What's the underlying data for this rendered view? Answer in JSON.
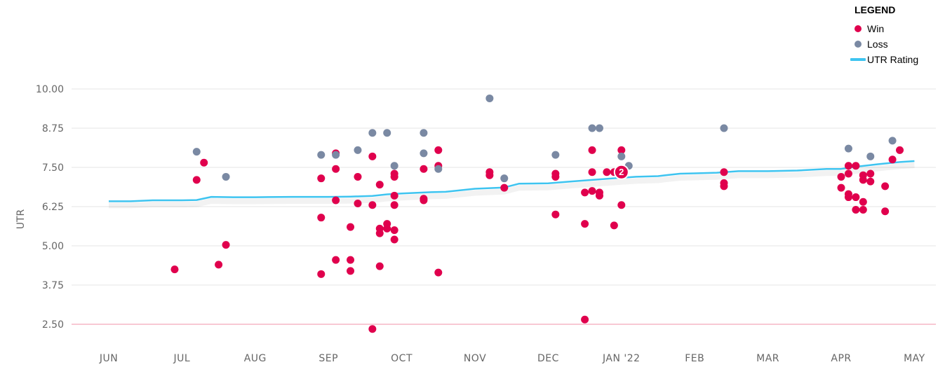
{
  "legend": {
    "title": "LEGEND",
    "items": [
      {
        "label": "Win",
        "kind": "dot",
        "color": "#e0004d"
      },
      {
        "label": "Loss",
        "kind": "dot",
        "color": "#7a89a3"
      },
      {
        "label": "UTR Rating",
        "kind": "line",
        "color": "#3ec4f0"
      }
    ]
  },
  "chart_data": {
    "type": "scatter",
    "ylabel": "UTR",
    "xlabel": "",
    "ylim": [
      2.5,
      10.0
    ],
    "y_ticks": [
      "10.00",
      "8.75",
      "7.50",
      "6.25",
      "5.00",
      "3.75",
      "2.50"
    ],
    "x_ticks": [
      "JUN",
      "JUL",
      "AUG",
      "SEP",
      "OCT",
      "NOV",
      "DEC",
      "JAN '22",
      "FEB",
      "MAR",
      "APR",
      "MAY"
    ],
    "grid": true,
    "legend_position": "top-right",
    "colors": {
      "win": "#e0004d",
      "loss": "#7a89a3",
      "rating": "#3ec4f0",
      "baseline": "#f4a6bb"
    },
    "annotations": [
      {
        "text": "2",
        "month": 7.0,
        "y": 7.35,
        "result": "Win"
      }
    ],
    "series": [
      {
        "name": "UTR Rating",
        "kind": "line",
        "points": [
          [
            0.0,
            6.42
          ],
          [
            0.3,
            6.42
          ],
          [
            0.6,
            6.45
          ],
          [
            1.0,
            6.45
          ],
          [
            1.2,
            6.46
          ],
          [
            1.4,
            6.56
          ],
          [
            1.7,
            6.55
          ],
          [
            2.0,
            6.55
          ],
          [
            2.5,
            6.56
          ],
          [
            3.0,
            6.56
          ],
          [
            3.3,
            6.57
          ],
          [
            3.6,
            6.59
          ],
          [
            3.8,
            6.64
          ],
          [
            4.0,
            6.67
          ],
          [
            4.4,
            6.71
          ],
          [
            4.6,
            6.72
          ],
          [
            5.0,
            6.82
          ],
          [
            5.4,
            6.86
          ],
          [
            5.6,
            6.98
          ],
          [
            6.0,
            6.99
          ],
          [
            6.3,
            7.05
          ],
          [
            6.6,
            7.1
          ],
          [
            7.0,
            7.17
          ],
          [
            7.2,
            7.2
          ],
          [
            7.5,
            7.22
          ],
          [
            7.6,
            7.25
          ],
          [
            7.8,
            7.3
          ],
          [
            8.0,
            7.31
          ],
          [
            8.3,
            7.33
          ],
          [
            8.6,
            7.38
          ],
          [
            9.0,
            7.38
          ],
          [
            9.4,
            7.4
          ],
          [
            9.8,
            7.45
          ],
          [
            10.0,
            7.45
          ],
          [
            10.2,
            7.52
          ],
          [
            10.5,
            7.6
          ],
          [
            10.8,
            7.67
          ],
          [
            11.0,
            7.7
          ]
        ]
      },
      {
        "name": "Win",
        "kind": "points",
        "points": [
          [
            0.9,
            4.25
          ],
          [
            1.2,
            7.1
          ],
          [
            1.3,
            7.65
          ],
          [
            1.5,
            4.4
          ],
          [
            1.6,
            5.03
          ],
          [
            2.9,
            4.1
          ],
          [
            2.9,
            5.9
          ],
          [
            2.9,
            7.15
          ],
          [
            3.1,
            4.55
          ],
          [
            3.1,
            6.45
          ],
          [
            3.1,
            7.45
          ],
          [
            3.1,
            7.95
          ],
          [
            3.3,
            4.2
          ],
          [
            3.3,
            4.55
          ],
          [
            3.3,
            5.6
          ],
          [
            3.4,
            6.35
          ],
          [
            3.4,
            7.2
          ],
          [
            3.6,
            2.35
          ],
          [
            3.6,
            6.3
          ],
          [
            3.6,
            7.85
          ],
          [
            3.7,
            4.35
          ],
          [
            3.7,
            5.4
          ],
          [
            3.7,
            5.55
          ],
          [
            3.7,
            6.95
          ],
          [
            3.8,
            5.55
          ],
          [
            3.8,
            5.7
          ],
          [
            3.9,
            5.2
          ],
          [
            3.9,
            5.5
          ],
          [
            3.9,
            6.3
          ],
          [
            3.9,
            6.6
          ],
          [
            3.9,
            7.2
          ],
          [
            3.9,
            7.3
          ],
          [
            4.3,
            6.45
          ],
          [
            4.3,
            6.5
          ],
          [
            4.3,
            7.45
          ],
          [
            4.5,
            4.15
          ],
          [
            4.5,
            7.55
          ],
          [
            4.5,
            8.05
          ],
          [
            5.2,
            7.25
          ],
          [
            5.2,
            7.35
          ],
          [
            5.4,
            6.85
          ],
          [
            6.1,
            6.0
          ],
          [
            6.1,
            7.2
          ],
          [
            6.1,
            7.3
          ],
          [
            6.5,
            2.65
          ],
          [
            6.5,
            5.7
          ],
          [
            6.5,
            6.7
          ],
          [
            6.6,
            6.75
          ],
          [
            6.6,
            7.35
          ],
          [
            6.6,
            8.05
          ],
          [
            6.7,
            6.6
          ],
          [
            6.7,
            6.7
          ],
          [
            6.8,
            7.35
          ],
          [
            6.9,
            5.65
          ],
          [
            6.9,
            7.35
          ],
          [
            7.0,
            6.3
          ],
          [
            7.0,
            7.35
          ],
          [
            7.0,
            8.05
          ],
          [
            8.4,
            6.9
          ],
          [
            8.4,
            7.0
          ],
          [
            8.4,
            7.35
          ],
          [
            10.0,
            6.85
          ],
          [
            10.0,
            7.2
          ],
          [
            10.1,
            6.55
          ],
          [
            10.1,
            6.65
          ],
          [
            10.1,
            7.3
          ],
          [
            10.1,
            7.55
          ],
          [
            10.2,
            6.15
          ],
          [
            10.2,
            6.55
          ],
          [
            10.2,
            7.55
          ],
          [
            10.3,
            6.15
          ],
          [
            10.3,
            6.4
          ],
          [
            10.3,
            7.1
          ],
          [
            10.3,
            7.25
          ],
          [
            10.4,
            7.05
          ],
          [
            10.4,
            7.3
          ],
          [
            10.6,
            6.1
          ],
          [
            10.6,
            6.9
          ],
          [
            10.7,
            7.75
          ],
          [
            10.8,
            8.05
          ]
        ]
      },
      {
        "name": "Loss",
        "kind": "points",
        "points": [
          [
            1.2,
            8.0
          ],
          [
            1.6,
            7.2
          ],
          [
            2.9,
            7.9
          ],
          [
            3.1,
            7.9
          ],
          [
            3.4,
            8.05
          ],
          [
            3.6,
            8.6
          ],
          [
            3.8,
            8.6
          ],
          [
            3.9,
            7.55
          ],
          [
            4.3,
            7.95
          ],
          [
            4.3,
            8.6
          ],
          [
            4.5,
            7.45
          ],
          [
            5.2,
            9.7
          ],
          [
            5.4,
            7.15
          ],
          [
            6.1,
            7.9
          ],
          [
            6.6,
            8.75
          ],
          [
            6.7,
            8.75
          ],
          [
            7.0,
            7.85
          ],
          [
            7.1,
            7.55
          ],
          [
            8.4,
            8.75
          ],
          [
            10.1,
            8.1
          ],
          [
            10.4,
            7.85
          ],
          [
            10.7,
            8.35
          ]
        ]
      }
    ]
  }
}
